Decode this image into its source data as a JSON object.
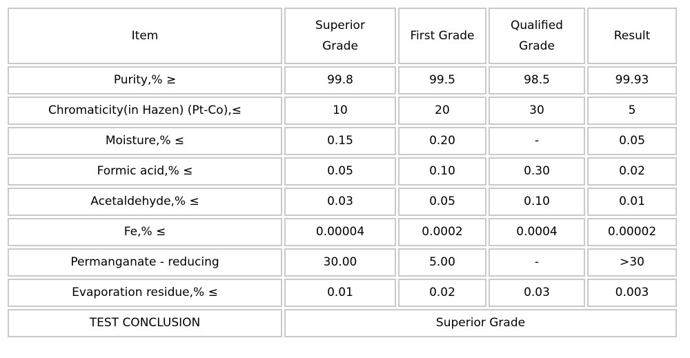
{
  "colors": {
    "page_background": "#ffffff",
    "cell_background": "#ffffff",
    "border": "#c9c9c9",
    "text": "#000000"
  },
  "table": {
    "headers": {
      "item": "Item",
      "superior_grade": "Superior\nGrade",
      "first_grade": "First Grade",
      "qualified_grade": "Qualified\nGrade",
      "result": "Result"
    },
    "rows": [
      {
        "label": "Purity,% ≥",
        "values": [
          "99.8",
          "99.5",
          "98.5",
          "99.93"
        ]
      },
      {
        "label": "Chromaticity(in Hazen) (Pt-Co),≤",
        "values": [
          "10",
          "20",
          "30",
          "5"
        ]
      },
      {
        "label": "Moisture,% ≤",
        "values": [
          "0.15",
          "0.20",
          "-",
          "0.05"
        ]
      },
      {
        "label": "Formic acid,% ≤",
        "values": [
          "0.05",
          "0.10",
          "0.30",
          "0.02"
        ]
      },
      {
        "label": "Acetaldehyde,% ≤",
        "values": [
          "0.03",
          "0.05",
          "0.10",
          "0.01"
        ]
      },
      {
        "label": "Fe,% ≤",
        "values": [
          "0.00004",
          "0.0002",
          "0.0004",
          "0.00002"
        ]
      },
      {
        "label": "Permanganate - reducing",
        "values": [
          "30.00",
          "5.00",
          "-",
          ">30"
        ]
      },
      {
        "label": "Evaporation residue,% ≤",
        "values": [
          "0.01",
          "0.02",
          "0.03",
          "0.003"
        ]
      }
    ],
    "conclusion": {
      "label": "TEST CONCLUSION",
      "value": "Superior Grade"
    }
  }
}
